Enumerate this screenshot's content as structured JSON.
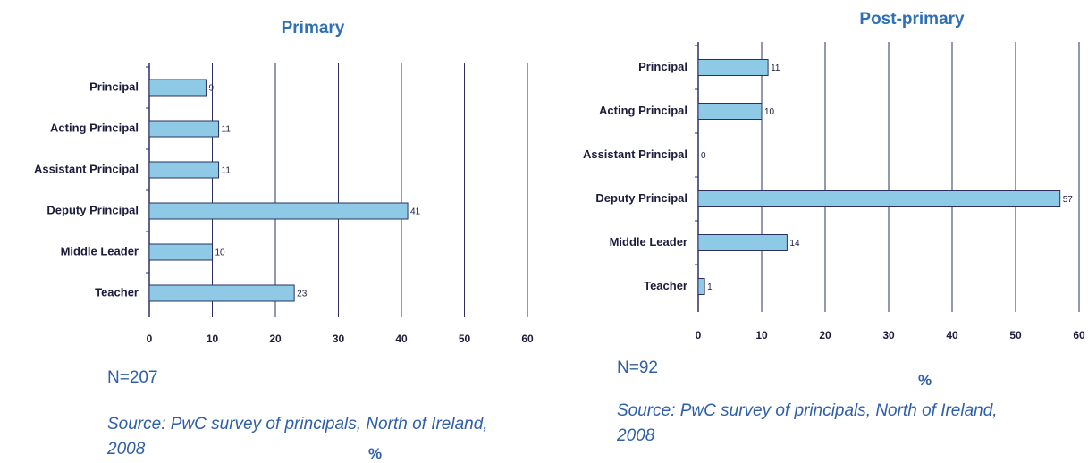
{
  "chart_data": [
    {
      "type": "bar",
      "orientation": "horizontal",
      "title": "Primary",
      "categories": [
        "Principal",
        "Acting Principal",
        "Assistant Principal",
        "Deputy Principal",
        "Middle Leader",
        "Teacher"
      ],
      "values": [
        9,
        11,
        11,
        41,
        10,
        23
      ],
      "color": "#8ecae6",
      "xlim": [
        0,
        60
      ],
      "xticks": [
        0,
        10,
        20,
        30,
        40,
        50,
        60
      ],
      "grid": true,
      "xlabel": "%",
      "note": "N=207",
      "source": "Source: PwC survey of principals, North of Ireland, 2008"
    },
    {
      "type": "bar",
      "orientation": "horizontal",
      "title": "Post-primary",
      "categories": [
        "Principal",
        "Acting Principal",
        "Assistant Principal",
        "Deputy Principal",
        "Middle Leader",
        "Teacher"
      ],
      "values": [
        11,
        10,
        0,
        57,
        14,
        1
      ],
      "color": "#8ecae6",
      "xlim": [
        0,
        60
      ],
      "xticks": [
        0,
        10,
        20,
        30,
        40,
        50,
        60
      ],
      "grid": true,
      "xlabel": "%",
      "note": "N=92",
      "source": "Source: PwC survey of principals, North of Ireland, 2008"
    }
  ]
}
